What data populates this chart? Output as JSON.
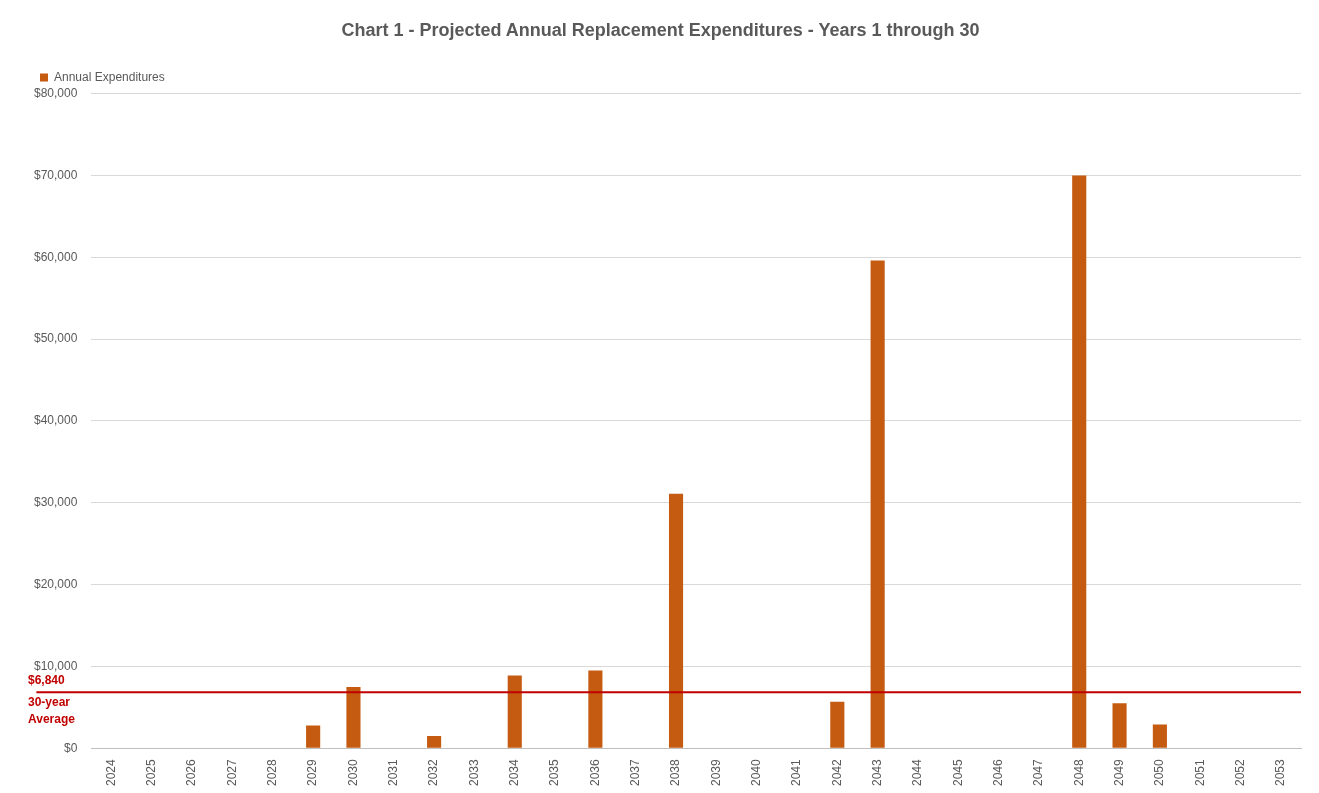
{
  "chart_data": {
    "type": "bar",
    "title": "Chart 1 - Projected Annual Replacement Expenditures - Years 1 through 30",
    "categories": [
      "2024",
      "2025",
      "2026",
      "2027",
      "2028",
      "2029",
      "2030",
      "2031",
      "2032",
      "2033",
      "2034",
      "2035",
      "2036",
      "2037",
      "2038",
      "2039",
      "2040",
      "2041",
      "2042",
      "2043",
      "2044",
      "2045",
      "2046",
      "2047",
      "2048",
      "2049",
      "2050",
      "2051",
      "2052",
      "2053"
    ],
    "series": [
      {
        "name": "Annual Expenditures",
        "color": "#c55a11",
        "values": [
          0,
          0,
          0,
          0,
          0,
          2800,
          7500,
          0,
          1500,
          0,
          8900,
          0,
          9500,
          0,
          31100,
          0,
          0,
          0,
          5700,
          59600,
          0,
          0,
          0,
          0,
          70000,
          5500,
          2900,
          0,
          0,
          0
        ]
      }
    ],
    "ylim": [
      0,
      80000
    ],
    "yticks": [
      {
        "value": 0,
        "label": "$0"
      },
      {
        "value": 10000,
        "label": "$10,000"
      },
      {
        "value": 20000,
        "label": "$20,000"
      },
      {
        "value": 30000,
        "label": "$30,000"
      },
      {
        "value": 40000,
        "label": "$40,000"
      },
      {
        "value": 50000,
        "label": "$50,000"
      },
      {
        "value": 60000,
        "label": "$60,000"
      },
      {
        "value": 70000,
        "label": "$70,000"
      },
      {
        "value": 80000,
        "label": "$80,000"
      }
    ],
    "ref_lines": [
      {
        "axis": "y",
        "value": 6840,
        "label": "$6,840\n30-year\nAverage",
        "color": "#c00000",
        "line_style": "solid"
      }
    ],
    "grid": "y",
    "legend": "top left"
  }
}
